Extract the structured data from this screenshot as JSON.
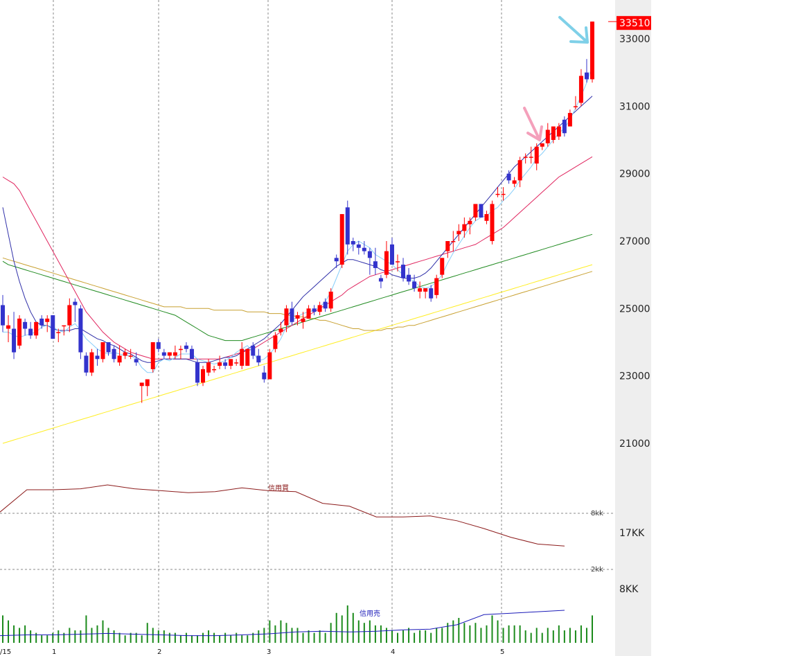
{
  "chart_data": {
    "type": "candlestick",
    "price_axis": {
      "ticks": [
        21000,
        23000,
        25000,
        27000,
        29000,
        31000,
        33000
      ],
      "labels": [
        "21000",
        "23000",
        "25000",
        "27000",
        "29000",
        "31000",
        "33000"
      ],
      "range": [
        19000,
        34200
      ],
      "current_price_label": "33510",
      "current_price": 33510
    },
    "margin_axis": {
      "labels": [
        "17KK",
        "8KK"
      ],
      "gridline_labels": [
        "8kk",
        "2kk"
      ]
    },
    "x_labels": [
      "/15",
      "1",
      "2",
      "3",
      "4",
      "5"
    ],
    "series_labels": {
      "margin_buy": "信用買",
      "margin_sell": "信用売"
    },
    "colors": {
      "up": "#ff0000",
      "down": "#3333cc",
      "ma5": "#87cefa",
      "ma10": "#2e2ea8",
      "ma25": "#e0245e",
      "ma50": "#1f8a1f",
      "ma75": "#c8a030",
      "ma200": "#ffee22",
      "volume": "#1a8a1a",
      "margin_buy": "#8b1a1a",
      "margin_sell": "#1a1ab8",
      "grid": "#888888",
      "axis_bg": "#eeeeee"
    },
    "candles": [
      [
        25100,
        25400,
        24300,
        24500
      ],
      [
        24400,
        24800,
        24000,
        24500
      ],
      [
        24400,
        24900,
        23500,
        23700
      ],
      [
        23900,
        24800,
        23800,
        24700
      ],
      [
        24600,
        24700,
        24200,
        24400
      ],
      [
        24400,
        24600,
        24100,
        24200
      ],
      [
        24200,
        24600,
        24100,
        24600
      ],
      [
        24700,
        24800,
        24400,
        24500
      ],
      [
        24600,
        24800,
        24300,
        24700
      ],
      [
        24800,
        24800,
        24100,
        24100
      ],
      [
        24300,
        24400,
        24000,
        24300
      ],
      [
        24500,
        24500,
        24200,
        24500
      ],
      [
        24500,
        25300,
        24300,
        25100
      ],
      [
        25200,
        25300,
        24600,
        25100
      ],
      [
        25000,
        25100,
        23500,
        23700
      ],
      [
        23600,
        23700,
        23000,
        23100
      ],
      [
        23100,
        23800,
        23000,
        23700
      ],
      [
        23600,
        23800,
        23300,
        23500
      ],
      [
        23500,
        24000,
        23400,
        24000
      ],
      [
        24000,
        24000,
        23600,
        23700
      ],
      [
        23800,
        23900,
        23400,
        23500
      ],
      [
        23400,
        23900,
        23300,
        23600
      ],
      [
        23600,
        23800,
        23500,
        23700
      ],
      [
        23600,
        23800,
        23500,
        23600
      ],
      [
        23500,
        23700,
        23300,
        23400
      ],
      [
        22700,
        22800,
        22200,
        22800
      ],
      [
        22700,
        22900,
        22400,
        22900
      ],
      [
        23200,
        24000,
        23100,
        24000
      ],
      [
        24000,
        24100,
        23700,
        23800
      ],
      [
        23700,
        23800,
        23500,
        23600
      ],
      [
        23600,
        23700,
        23500,
        23700
      ],
      [
        23600,
        23900,
        23500,
        23700
      ],
      [
        23800,
        23900,
        23500,
        23800
      ],
      [
        23900,
        24000,
        23700,
        23800
      ],
      [
        23800,
        23900,
        23500,
        23500
      ],
      [
        23400,
        23500,
        22700,
        22800
      ],
      [
        22800,
        23300,
        22700,
        23200
      ],
      [
        23100,
        23500,
        23000,
        23400
      ],
      [
        23200,
        23300,
        23100,
        23200
      ],
      [
        23300,
        23600,
        23200,
        23400
      ],
      [
        23400,
        23500,
        23200,
        23300
      ],
      [
        23300,
        23500,
        23200,
        23500
      ],
      [
        23400,
        23500,
        23300,
        23400
      ],
      [
        23300,
        24000,
        23200,
        23800
      ],
      [
        23300,
        23800,
        23300,
        23800
      ],
      [
        23900,
        24000,
        23500,
        23600
      ],
      [
        23600,
        23800,
        23300,
        23400
      ],
      [
        23100,
        23300,
        22800,
        22900
      ],
      [
        22900,
        23800,
        22900,
        23700
      ],
      [
        23800,
        24300,
        23700,
        24200
      ],
      [
        24300,
        24600,
        24200,
        24400
      ],
      [
        24500,
        25100,
        24300,
        25000
      ],
      [
        25000,
        25200,
        24500,
        24600
      ],
      [
        24700,
        24900,
        24500,
        24800
      ],
      [
        24600,
        24900,
        24400,
        24700
      ],
      [
        24700,
        25100,
        24700,
        25000
      ],
      [
        25000,
        25100,
        24800,
        24900
      ],
      [
        24900,
        25200,
        24800,
        25100
      ],
      [
        25200,
        25300,
        24900,
        25000
      ],
      [
        25000,
        25600,
        24900,
        25500
      ],
      [
        26500,
        26600,
        26200,
        26400
      ],
      [
        26300,
        27800,
        26200,
        27800
      ],
      [
        28000,
        28200,
        26600,
        26900
      ],
      [
        27000,
        27100,
        26700,
        26900
      ],
      [
        26900,
        27000,
        26600,
        26800
      ],
      [
        26800,
        27000,
        26600,
        26700
      ],
      [
        26700,
        26800,
        26000,
        26500
      ],
      [
        26400,
        26800,
        26000,
        26200
      ],
      [
        25900,
        26000,
        25600,
        25800
      ],
      [
        26000,
        27000,
        25900,
        26700
      ],
      [
        26900,
        27100,
        26300,
        26300
      ],
      [
        26400,
        26600,
        26100,
        26400
      ],
      [
        26300,
        26500,
        25800,
        25900
      ],
      [
        26000,
        26200,
        25700,
        25800
      ],
      [
        25800,
        26000,
        25500,
        25600
      ],
      [
        25500,
        25800,
        25300,
        25600
      ],
      [
        25500,
        25600,
        25300,
        25600
      ],
      [
        25600,
        25700,
        25200,
        25300
      ],
      [
        25400,
        26000,
        25300,
        25900
      ],
      [
        26000,
        26500,
        25900,
        26500
      ],
      [
        26700,
        27000,
        26500,
        27000
      ],
      [
        27000,
        27300,
        26700,
        27000
      ],
      [
        27200,
        27500,
        27000,
        27300
      ],
      [
        27300,
        27700,
        27100,
        27500
      ],
      [
        27500,
        27700,
        27200,
        27600
      ],
      [
        27700,
        28100,
        27600,
        28100
      ],
      [
        28100,
        28100,
        27700,
        27700
      ],
      [
        27600,
        27900,
        27500,
        27800
      ],
      [
        27000,
        28200,
        26900,
        28100
      ],
      [
        28400,
        28600,
        28300,
        28400
      ],
      [
        28400,
        28600,
        28200,
        28400
      ],
      [
        29000,
        29100,
        28700,
        28800
      ],
      [
        28700,
        28900,
        28600,
        28800
      ],
      [
        28800,
        29500,
        28600,
        29400
      ],
      [
        29500,
        29600,
        29300,
        29500
      ],
      [
        29500,
        29800,
        29300,
        29500
      ],
      [
        29300,
        29900,
        29100,
        29800
      ],
      [
        29800,
        29900,
        29700,
        29900
      ],
      [
        29900,
        30500,
        29800,
        30300
      ],
      [
        30000,
        30400,
        29900,
        30400
      ],
      [
        30100,
        30500,
        30000,
        30400
      ],
      [
        30600,
        30700,
        30100,
        30200
      ],
      [
        30400,
        30900,
        30400,
        30800
      ],
      [
        31000,
        31300,
        30900,
        31000
      ],
      [
        31100,
        32100,
        31000,
        31900
      ],
      [
        32000,
        32400,
        31700,
        31800
      ],
      [
        31800,
        33510,
        31700,
        33510
      ]
    ],
    "ma5": [
      24300,
      24300,
      24200,
      24150,
      24200,
      24250,
      24300,
      24450,
      24500,
      24450,
      24350,
      24300,
      24450,
      24550,
      24350,
      24100,
      23950,
      23800,
      23700,
      23650,
      23700,
      23650,
      23600,
      23600,
      23500,
      23250,
      23100,
      23100,
      23400,
      23500,
      23450,
      23550,
      23650,
      23650,
      23650,
      23500,
      23450,
      23400,
      23350,
      23400,
      23450,
      23550,
      23700,
      23800,
      23900,
      23700,
      23450,
      23500,
      23650,
      23850,
      24100,
      24450,
      24650,
      24750,
      24850,
      24900,
      24950,
      25050,
      25200,
      25500,
      25900,
      26300,
      26700,
      26900,
      27000,
      26900,
      26800,
      26600,
      26500,
      26400,
      26300,
      26150,
      26000,
      25900,
      25800,
      25650,
      25600,
      25650,
      25800,
      26000,
      26350,
      26650,
      26900,
      27150,
      27400,
      27600,
      27700,
      27750,
      27900,
      28000,
      28200,
      28350,
      28550,
      28800,
      29000,
      29200,
      29450,
      29600,
      29800,
      30000,
      30200,
      30350,
      30600,
      30950,
      31300,
      31700,
      32200
    ],
    "ma10": [
      28000,
      27200,
      26400,
      25800,
      25300,
      24900,
      24600,
      24500,
      24500,
      24400,
      24350,
      24350,
      24350,
      24400,
      24400,
      24300,
      24200,
      24100,
      24050,
      23950,
      23900,
      23800,
      23700,
      23650,
      23550,
      23450,
      23400,
      23400,
      23450,
      23500,
      23500,
      23500,
      23500,
      23500,
      23450,
      23400,
      23400,
      23400,
      23450,
      23500,
      23550,
      23550,
      23600,
      23700,
      23800,
      23900,
      24000,
      24100,
      24250,
      24400,
      24550,
      24750,
      24950,
      25150,
      25350,
      25500,
      25650,
      25800,
      25950,
      26100,
      26250,
      26350,
      26450,
      26450,
      26400,
      26350,
      26300,
      26250,
      26150,
      26100,
      26000,
      25950,
      25900,
      25900,
      25900,
      25950,
      26050,
      26200,
      26400,
      26600,
      26800,
      27000,
      27200,
      27400,
      27600,
      27800,
      28000,
      28200,
      28400,
      28600,
      28800,
      29000,
      29200,
      29350,
      29500,
      29650,
      29800,
      29950,
      30100,
      30250,
      30400,
      30550,
      30700,
      30850,
      31000,
      31150,
      31300
    ],
    "ma25": [
      28900,
      28800,
      28700,
      28500,
      28200,
      27900,
      27600,
      27300,
      27000,
      26700,
      26400,
      26100,
      25800,
      25500,
      25200,
      24900,
      24700,
      24500,
      24300,
      24150,
      24000,
      23900,
      23800,
      23700,
      23650,
      23600,
      23550,
      23500,
      23500,
      23500,
      23500,
      23500,
      23500,
      23500,
      23500,
      23500,
      23500,
      23500,
      23500,
      23500,
      23550,
      23600,
      23650,
      23700,
      23750,
      23800,
      23900,
      24000,
      24100,
      24200,
      24300,
      24400,
      24500,
      24600,
      24700,
      24800,
      24900,
      25000,
      25100,
      25200,
      25300,
      25400,
      25550,
      25650,
      25750,
      25850,
      25950,
      26000,
      26050,
      26100,
      26150,
      26200,
      26250,
      26300,
      26350,
      26400,
      26450,
      26500,
      26550,
      26600,
      26650,
      26700,
      26750,
      26800,
      26850,
      26900,
      27000,
      27100,
      27200,
      27300,
      27400,
      27550,
      27700,
      27850,
      28000,
      28150,
      28300,
      28450,
      28600,
      28750,
      28900,
      29000,
      29100,
      29200,
      29300,
      29400,
      29500
    ],
    "ma50": [
      26400,
      26300,
      26250,
      26200,
      26150,
      26100,
      26050,
      26000,
      25950,
      25900,
      25850,
      25800,
      25750,
      25700,
      25650,
      25600,
      25550,
      25500,
      25450,
      25400,
      25350,
      25300,
      25250,
      25200,
      25150,
      25100,
      25050,
      25000,
      24950,
      24900,
      24850,
      24800,
      24700,
      24600,
      24500,
      24400,
      24300,
      24200,
      24150,
      24100,
      24050,
      24050,
      24050,
      24050,
      24100,
      24150,
      24200,
      24250,
      24300,
      24350,
      24400,
      24450,
      24500,
      24550,
      24600,
      24650,
      24700,
      24750,
      24800,
      24850,
      24900,
      24950,
      25000,
      25050,
      25100,
      25150,
      25200,
      25250,
      25300,
      25350,
      25400,
      25450,
      25500,
      25550,
      25600,
      25650,
      25700,
      25750,
      25800,
      25850,
      25900,
      25950,
      26000,
      26050,
      26100,
      26150,
      26200,
      26250,
      26300,
      26350,
      26400,
      26450,
      26500,
      26550,
      26600,
      26650,
      26700,
      26750,
      26800,
      26850,
      26900,
      26950,
      27000,
      27050,
      27100,
      27150,
      27200
    ],
    "ma75": [
      26500,
      26450,
      26400,
      26350,
      26300,
      26250,
      26200,
      26150,
      26100,
      26050,
      26000,
      25950,
      25900,
      25850,
      25800,
      25750,
      25700,
      25650,
      25600,
      25550,
      25500,
      25450,
      25400,
      25350,
      25300,
      25250,
      25200,
      25150,
      25100,
      25050,
      25050,
      25050,
      25050,
      25000,
      25000,
      25000,
      25000,
      25000,
      24950,
      24950,
      24950,
      24950,
      24950,
      24950,
      24900,
      24900,
      24900,
      24900,
      24850,
      24850,
      24850,
      24800,
      24800,
      24750,
      24750,
      24700,
      24700,
      24650,
      24650,
      24600,
      24550,
      24500,
      24450,
      24400,
      24400,
      24350,
      24350,
      24350,
      24350,
      24400,
      24400,
      24450,
      24450,
      24500,
      24500,
      24550,
      24600,
      24650,
      24700,
      24750,
      24800,
      24850,
      24900,
      24950,
      25000,
      25050,
      25100,
      25150,
      25200,
      25250,
      25300,
      25350,
      25400,
      25450,
      25500,
      25550,
      25600,
      25650,
      25700,
      25750,
      25800,
      25850,
      25900,
      25950,
      26000,
      26050,
      26100
    ],
    "ma200": [
      21000,
      21050,
      21100,
      21150,
      21200,
      21250,
      21300,
      21350,
      21400,
      21450,
      21500,
      21550,
      21600,
      21650,
      21700,
      21750,
      21800,
      21850,
      21900,
      21950,
      22000,
      22050,
      22100,
      22150,
      22200,
      22250,
      22300,
      22350,
      22400,
      22450,
      22500,
      22550,
      22600,
      22650,
      22700,
      22750,
      22800,
      22850,
      22900,
      22950,
      23000,
      23050,
      23100,
      23150,
      23200,
      23250,
      23300,
      23350,
      23400,
      23450,
      23500,
      23550,
      23600,
      23650,
      23700,
      23750,
      23800,
      23850,
      23900,
      23950,
      24000,
      24050,
      24100,
      24150,
      24200,
      24250,
      24300,
      24350,
      24400,
      24450,
      24500,
      24550,
      24600,
      24650,
      24700,
      24750,
      24800,
      24850,
      24900,
      24950,
      25000,
      25050,
      25100,
      25150,
      25200,
      25250,
      25300,
      25350,
      25400,
      25450,
      25500,
      25550,
      25600,
      25650,
      25700,
      25750,
      25800,
      25850,
      25900,
      25950,
      26000,
      26050,
      26100,
      26150,
      26200,
      26250,
      26300
    ],
    "volumes": [
      0.55,
      0.45,
      0.35,
      0.3,
      0.35,
      0.25,
      0.2,
      0.15,
      0.15,
      0.2,
      0.25,
      0.2,
      0.3,
      0.25,
      0.25,
      0.55,
      0.3,
      0.35,
      0.45,
      0.3,
      0.25,
      0.2,
      0.15,
      0.2,
      0.2,
      0.15,
      0.4,
      0.3,
      0.25,
      0.25,
      0.2,
      0.2,
      0.15,
      0.2,
      0.15,
      0.15,
      0.2,
      0.25,
      0.2,
      0.15,
      0.2,
      0.15,
      0.2,
      0.15,
      0.15,
      0.2,
      0.25,
      0.3,
      0.45,
      0.35,
      0.45,
      0.4,
      0.3,
      0.3,
      0.2,
      0.25,
      0.2,
      0.25,
      0.2,
      0.4,
      0.6,
      0.55,
      0.75,
      0.6,
      0.45,
      0.4,
      0.45,
      0.35,
      0.35,
      0.3,
      0.25,
      0.2,
      0.25,
      0.3,
      0.2,
      0.25,
      0.25,
      0.2,
      0.3,
      0.3,
      0.4,
      0.45,
      0.5,
      0.4,
      0.35,
      0.4,
      0.3,
      0.35,
      0.55,
      0.45,
      0.3,
      0.35,
      0.35,
      0.35,
      0.25,
      0.2,
      0.3,
      0.2,
      0.3,
      0.25,
      0.35,
      0.25,
      0.3,
      0.25,
      0.35,
      0.3,
      0.55
    ],
    "margin_buy": [
      0.72,
      0.95,
      0.95,
      0.96,
      1.0,
      0.96,
      0.94,
      0.92,
      0.93,
      0.97,
      0.94,
      0.93,
      0.81,
      0.78,
      0.67,
      0.67,
      0.68,
      0.63,
      0.55,
      0.46,
      0.39,
      0.37
    ],
    "margin_sell": [
      0.2,
      0.22,
      0.22,
      0.24,
      0.26,
      0.24,
      0.22,
      0.2,
      0.2,
      0.22,
      0.25,
      0.3,
      0.32,
      0.3,
      0.32,
      0.36,
      0.38,
      0.5,
      0.78,
      0.82,
      0.86,
      0.9
    ]
  }
}
